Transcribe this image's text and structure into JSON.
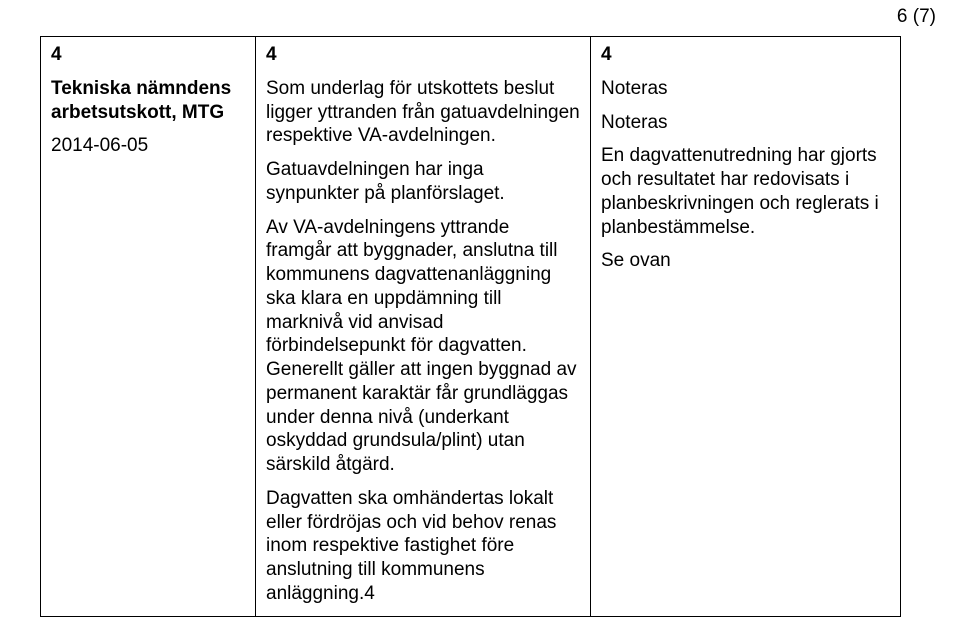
{
  "pageNumber": "6 (7)",
  "col1": {
    "num": "4",
    "heading": "Tekniska nämn­dens arbetsut­skott, MTG",
    "date": "2014-06-05"
  },
  "col2": {
    "num": "4",
    "p1": "Som underlag för utskottets beslut ligger yttranden från gatuavdelningen respektive VA-avdelningen.",
    "p2": "Gatuavdelningen har inga synpunkter på planförslaget.",
    "p3": "Av VA-avdelningens yttrande framgår att byggnader, anslutna till kommunens dagvattenanläggning ska klara en uppdämning till marknivå vid anvisad förbindelsepunkt för dagvatten. Generellt gäller att ingen byggnad av permanent karaktär får grundläggas under denna nivå (underkant oskyddad grundsula/plint) utan särskild åtgärd.",
    "p4": "Dagvatten ska omhändertas lokalt eller fördröjas och vid behov renas inom respektive fastighet före anslutning till kommunens anläggning.4"
  },
  "col3": {
    "num": "4",
    "p1": "Noteras",
    "p2": "Noteras",
    "p3": "En dagvattenutredning har gjorts och resultatet har redovisats i planbeskrivningen och reglerats i planbestämmelse.",
    "p4": "Se ovan"
  }
}
